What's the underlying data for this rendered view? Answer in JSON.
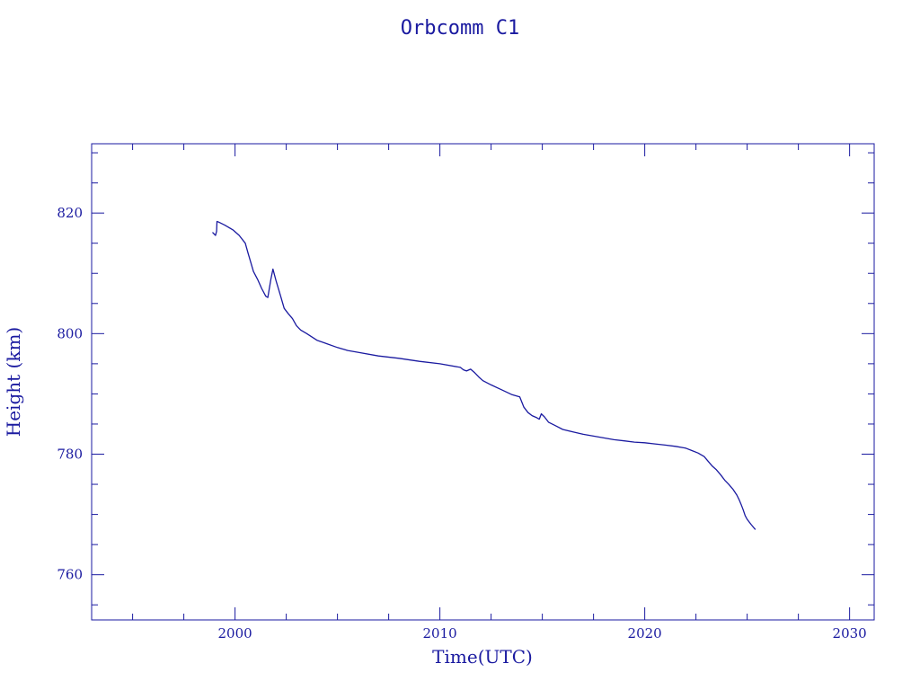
{
  "chart_data": {
    "type": "line",
    "title": "Orbcomm C1",
    "xlabel": "Time(UTC)",
    "ylabel": "Height (km)",
    "xlim": [
      1993,
      2031.2
    ],
    "ylim": [
      752.5,
      831.5
    ],
    "xticks": [
      2000,
      2010,
      2020,
      2030
    ],
    "x_minor_step": 2.5,
    "yticks": [
      760,
      780,
      800,
      820
    ],
    "y_minor_step": 5,
    "grid": false,
    "line_color": "#1a1aa0",
    "series": [
      {
        "x": [
          1998.9,
          1999.05,
          1999.1,
          1999.12,
          1999.2,
          1999.5,
          1999.9,
          2000.2,
          2000.5,
          2000.65,
          2000.7,
          2000.9,
          2001.1,
          2001.3,
          2001.5,
          2001.6,
          2001.75,
          2001.85,
          2002.0,
          2002.2,
          2002.4,
          2002.6,
          2002.8,
          2003.0,
          2003.2,
          2003.5,
          2004.0,
          2004.5,
          2005.0,
          2005.5,
          2006.0,
          2007.0,
          2008.0,
          2009.0,
          2010.0,
          2011.0,
          2011.15,
          2011.3,
          2011.5,
          2011.7,
          2011.9,
          2012.1,
          2012.5,
          2013.0,
          2013.5,
          2013.9,
          2014.1,
          2014.3,
          2014.5,
          2014.7,
          2014.85,
          2014.95,
          2015.1,
          2015.3,
          2015.6,
          2016.0,
          2016.5,
          2017.0,
          2017.5,
          2018.0,
          2018.5,
          2019.0,
          2019.5,
          2020.0,
          2020.5,
          2021.0,
          2021.5,
          2022.0,
          2022.3,
          2022.6,
          2022.9,
          2023.1,
          2023.3,
          2023.5,
          2023.7,
          2023.9,
          2024.1,
          2024.3,
          2024.5,
          2024.6,
          2024.7,
          2024.8,
          2024.9,
          2025.0,
          2025.2,
          2025.4
        ],
        "y": [
          816.8,
          816.3,
          817.0,
          818.6,
          818.5,
          818.0,
          817.2,
          816.3,
          815.0,
          813.2,
          812.6,
          810.3,
          809.0,
          807.5,
          806.2,
          806.0,
          809.0,
          810.7,
          808.8,
          806.5,
          804.2,
          803.3,
          802.5,
          801.3,
          800.6,
          800.0,
          798.9,
          798.3,
          797.7,
          797.2,
          796.9,
          796.3,
          795.9,
          795.4,
          795.0,
          794.4,
          794.0,
          793.8,
          794.1,
          793.5,
          792.8,
          792.2,
          791.5,
          790.7,
          789.9,
          789.5,
          787.8,
          786.9,
          786.4,
          786.1,
          785.8,
          786.7,
          786.2,
          785.3,
          784.8,
          784.1,
          783.7,
          783.3,
          783.0,
          782.7,
          782.4,
          782.2,
          782.0,
          781.9,
          781.7,
          781.5,
          781.3,
          781.0,
          780.6,
          780.2,
          779.6,
          778.8,
          778.0,
          777.4,
          776.6,
          775.7,
          775.0,
          774.2,
          773.2,
          772.5,
          771.7,
          770.8,
          769.8,
          769.2,
          768.3,
          767.5
        ]
      }
    ]
  }
}
